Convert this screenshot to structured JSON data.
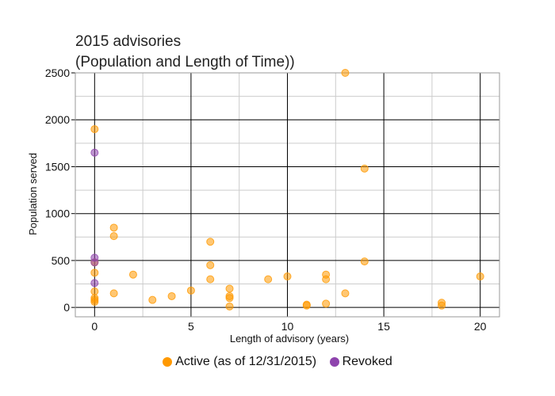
{
  "chart_data": {
    "type": "scatter",
    "title": "2015 advisories",
    "subtitle": "(Population and Length of Time))",
    "xlabel": "Length of advisory (years)",
    "ylabel": "Population served",
    "xlim": [
      -1,
      21
    ],
    "ylim": [
      -100,
      2500
    ],
    "x_ticks": [
      0,
      5,
      10,
      15,
      20
    ],
    "y_ticks": [
      0,
      500,
      1000,
      1500,
      2000,
      2500
    ],
    "grid": true,
    "legend_position": "bottom",
    "series": [
      {
        "name": "Active (as of 12/31/2015)",
        "color": "#FF9900",
        "points": [
          [
            0,
            1900
          ],
          [
            0,
            370
          ],
          [
            0,
            170
          ],
          [
            0,
            100
          ],
          [
            0,
            80
          ],
          [
            0,
            60
          ],
          [
            0,
            480
          ],
          [
            1,
            850
          ],
          [
            1,
            760
          ],
          [
            1,
            150
          ],
          [
            2,
            350
          ],
          [
            3,
            80
          ],
          [
            4,
            120
          ],
          [
            5,
            180
          ],
          [
            6,
            700
          ],
          [
            6,
            450
          ],
          [
            6,
            300
          ],
          [
            7,
            200
          ],
          [
            7,
            120
          ],
          [
            7,
            100
          ],
          [
            7,
            10
          ],
          [
            9,
            300
          ],
          [
            10,
            330
          ],
          [
            11,
            30
          ],
          [
            11,
            20
          ],
          [
            12,
            350
          ],
          [
            12,
            300
          ],
          [
            12,
            40
          ],
          [
            13,
            2500
          ],
          [
            13,
            150
          ],
          [
            14,
            1480
          ],
          [
            14,
            490
          ],
          [
            18,
            50
          ],
          [
            18,
            20
          ],
          [
            20,
            330
          ]
        ]
      },
      {
        "name": "Revoked",
        "color": "#8E44AD",
        "points": [
          [
            0,
            1650
          ],
          [
            0,
            530
          ],
          [
            0,
            480
          ],
          [
            0,
            260
          ]
        ]
      }
    ]
  }
}
